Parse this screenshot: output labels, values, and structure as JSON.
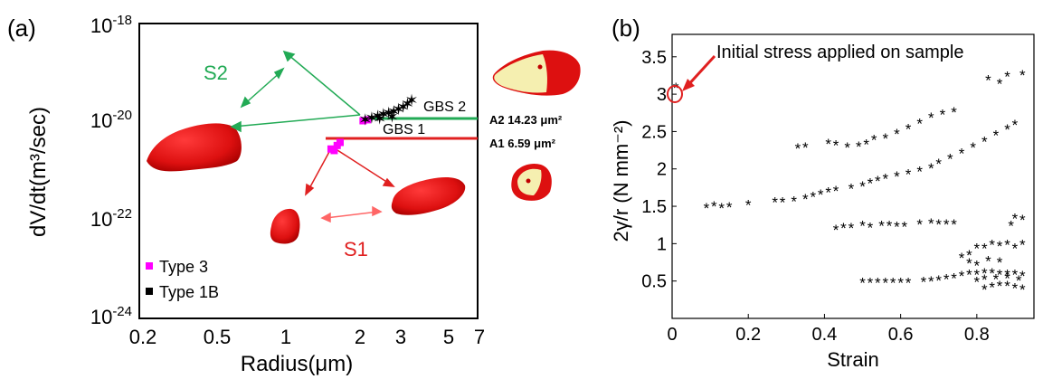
{
  "chart_data": [
    {
      "panel": "(a)",
      "type": "scatter",
      "xlabel": "Radius(μm)",
      "ylabel": "dV/dt(m³/sec)",
      "xscale": "log",
      "yscale": "log",
      "xlim": [
        0.2,
        7
      ],
      "ylim": [
        1e-24,
        1e-18
      ],
      "xticks": [
        "0.2",
        "0.5",
        "1",
        "2",
        "3",
        "5",
        "7"
      ],
      "xtick_values": [
        0.2,
        0.5,
        1,
        2,
        3,
        5,
        7
      ],
      "yticks": [
        {
          "value": 1e-18,
          "base": "10",
          "exp": "-18"
        },
        {
          "value": 1e-20,
          "base": "10",
          "exp": "-20"
        },
        {
          "value": 1e-22,
          "base": "10",
          "exp": "-22"
        },
        {
          "value": 1e-24,
          "base": "10",
          "exp": "-24"
        }
      ],
      "legend": {
        "placement": "bottom-left",
        "entries": [
          {
            "label": "Type 3",
            "color": "#ff00ff"
          },
          {
            "label": "Type 1B",
            "color": "#000000"
          }
        ]
      },
      "series": [
        {
          "name": "Type 3",
          "color": "#ff00ff",
          "marker": "square",
          "points": [
            [
              1.55,
              2.6e-21
            ],
            [
              1.5,
              2.8e-21
            ],
            [
              1.6,
              3.3e-21
            ],
            [
              1.65,
              3.8e-21
            ],
            [
              2.1,
              1.05e-20
            ],
            [
              2.2,
              1.1e-20
            ]
          ]
        },
        {
          "name": "Type 1B",
          "color": "#000000",
          "marker": "star",
          "points": [
            [
              2.15,
              1.1e-20
            ],
            [
              2.3,
              1.2e-20
            ],
            [
              2.45,
              1.3e-20
            ],
            [
              2.6,
              1.4e-20
            ],
            [
              2.75,
              1.5e-20
            ],
            [
              2.9,
              1.6e-20
            ],
            [
              3.05,
              1.8e-20
            ],
            [
              3.2,
              2e-20
            ],
            [
              3.35,
              2.3e-20
            ],
            [
              3.5,
              2.7e-20
            ],
            [
              2.5,
              1.15e-20
            ],
            [
              2.85,
              1.25e-20
            ]
          ]
        }
      ],
      "annotations": {
        "S1": {
          "text": "S1",
          "color": "#e02020"
        },
        "S2": {
          "text": "S2",
          "color": "#22aa55"
        },
        "GBS2": {
          "text": "GBS 2"
        },
        "GBS1": {
          "text": "GBS 1"
        },
        "A2": {
          "text": "A2 14.23 μm²"
        },
        "A1": {
          "text": "A1 6.59 μm²"
        }
      }
    },
    {
      "panel": "(b)",
      "type": "scatter",
      "xlabel": "Strain",
      "ylabel": "2γ/r (N mm⁻²)",
      "xlim": [
        0,
        0.95
      ],
      "ylim": [
        0,
        3.8
      ],
      "xticks": [
        0,
        0.2,
        0.4,
        0.6,
        0.8
      ],
      "yticks": [
        0.5,
        1,
        1.5,
        2,
        2.5,
        3,
        3.5
      ],
      "annotation": {
        "text": "Initial stress applied on sample",
        "color": "#e02020",
        "point": [
          0.01,
          3.1
        ]
      },
      "series": [
        {
          "marker": "asterisk",
          "color": "#000000",
          "points": [
            [
              0.01,
              3.1
            ],
            [
              0.09,
              1.49
            ],
            [
              0.11,
              1.51
            ],
            [
              0.13,
              1.49
            ],
            [
              0.15,
              1.5
            ],
            [
              0.2,
              1.53
            ],
            [
              0.27,
              1.57
            ],
            [
              0.29,
              1.57
            ],
            [
              0.32,
              1.58
            ],
            [
              0.35,
              1.61
            ],
            [
              0.37,
              1.64
            ],
            [
              0.39,
              1.67
            ],
            [
              0.41,
              1.7
            ],
            [
              0.43,
              1.72
            ],
            [
              0.47,
              1.75
            ],
            [
              0.5,
              1.78
            ],
            [
              0.52,
              1.82
            ],
            [
              0.54,
              1.85
            ],
            [
              0.56,
              1.88
            ],
            [
              0.59,
              1.91
            ],
            [
              0.62,
              1.94
            ],
            [
              0.65,
              1.98
            ],
            [
              0.68,
              2.02
            ],
            [
              0.7,
              2.08
            ],
            [
              0.73,
              2.15
            ],
            [
              0.76,
              2.22
            ],
            [
              0.79,
              2.3
            ],
            [
              0.82,
              2.38
            ],
            [
              0.85,
              2.46
            ],
            [
              0.88,
              2.54
            ],
            [
              0.9,
              2.6
            ],
            [
              0.33,
              2.29
            ],
            [
              0.35,
              2.3
            ],
            [
              0.41,
              2.35
            ],
            [
              0.43,
              2.33
            ],
            [
              0.46,
              2.3
            ],
            [
              0.49,
              2.31
            ],
            [
              0.51,
              2.34
            ],
            [
              0.53,
              2.4
            ],
            [
              0.56,
              2.42
            ],
            [
              0.59,
              2.48
            ],
            [
              0.62,
              2.55
            ],
            [
              0.65,
              2.62
            ],
            [
              0.68,
              2.7
            ],
            [
              0.71,
              2.74
            ],
            [
              0.74,
              2.77
            ],
            [
              0.43,
              1.2
            ],
            [
              0.45,
              1.22
            ],
            [
              0.47,
              1.22
            ],
            [
              0.5,
              1.25
            ],
            [
              0.52,
              1.23
            ],
            [
              0.55,
              1.25
            ],
            [
              0.57,
              1.25
            ],
            [
              0.59,
              1.24
            ],
            [
              0.61,
              1.24
            ],
            [
              0.65,
              1.27
            ],
            [
              0.68,
              1.28
            ],
            [
              0.7,
              1.27
            ],
            [
              0.72,
              1.27
            ],
            [
              0.74,
              1.27
            ],
            [
              0.5,
              0.49
            ],
            [
              0.52,
              0.49
            ],
            [
              0.54,
              0.49
            ],
            [
              0.56,
              0.49
            ],
            [
              0.58,
              0.49
            ],
            [
              0.6,
              0.49
            ],
            [
              0.62,
              0.49
            ],
            [
              0.66,
              0.5
            ],
            [
              0.68,
              0.51
            ],
            [
              0.7,
              0.52
            ],
            [
              0.72,
              0.54
            ],
            [
              0.74,
              0.55
            ],
            [
              0.76,
              0.58
            ],
            [
              0.78,
              0.6
            ],
            [
              0.8,
              0.6
            ],
            [
              0.82,
              0.62
            ],
            [
              0.84,
              0.62
            ],
            [
              0.86,
              0.6
            ],
            [
              0.88,
              0.6
            ],
            [
              0.9,
              0.6
            ],
            [
              0.92,
              0.58
            ],
            [
              0.82,
              0.4
            ],
            [
              0.84,
              0.43
            ],
            [
              0.86,
              0.45
            ],
            [
              0.88,
              0.45
            ],
            [
              0.9,
              0.42
            ],
            [
              0.92,
              0.4
            ],
            [
              0.8,
              0.5
            ],
            [
              0.82,
              0.53
            ],
            [
              0.85,
              0.54
            ],
            [
              0.88,
              0.55
            ],
            [
              0.91,
              0.52
            ],
            [
              0.76,
              0.82
            ],
            [
              0.78,
              0.86
            ],
            [
              0.8,
              0.95
            ],
            [
              0.82,
              0.95
            ],
            [
              0.84,
              1.0
            ],
            [
              0.86,
              0.98
            ],
            [
              0.88,
              1.0
            ],
            [
              0.9,
              0.95
            ],
            [
              0.92,
              1.0
            ],
            [
              0.89,
              1.25
            ],
            [
              0.9,
              1.35
            ],
            [
              0.92,
              1.33
            ],
            [
              0.78,
              0.75
            ],
            [
              0.8,
              0.72
            ],
            [
              0.83,
              0.78
            ],
            [
              0.86,
              0.76
            ],
            [
              0.83,
              3.2
            ],
            [
              0.86,
              3.15
            ],
            [
              0.88,
              3.25
            ],
            [
              0.92,
              3.27
            ]
          ]
        }
      ]
    }
  ]
}
